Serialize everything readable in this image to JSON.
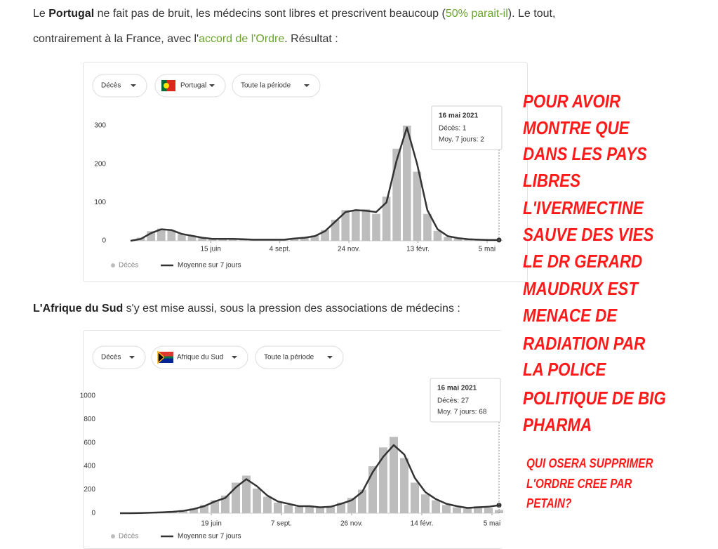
{
  "paragraphs": [
    [
      "Le ",
      "Portugal",
      " ne fait pas de bruit, les médecins sont libres et prescrivent beaucoup (",
      "50% parait-il",
      "). Le tout, contrairement à la France, avec l'",
      "accord de l'Ordre",
      ". Résultat :"
    ],
    [
      "L'Afrique du Sud",
      " s'y est mise aussi, sous la pression des associations de médecins :"
    ]
  ],
  "chart_data": [
    {
      "type": "bar",
      "controls": [
        "Décès",
        "Portugal",
        "Toute la période"
      ],
      "tooltip": {
        "title": "16 mai 2021",
        "lines": [
          "Décès: 1",
          "Moy. 7 jours: 2"
        ]
      },
      "xlim": [
        0,
        36
      ],
      "xticks": [
        {
          "value": 7.83,
          "label": "15 juin"
        },
        {
          "value": 14.58,
          "label": "4 sept."
        },
        {
          "value": 21.33,
          "label": "24 nov."
        },
        {
          "value": 28.08,
          "label": "13 févr."
        },
        {
          "value": 34.83,
          "label": "5 mai"
        }
      ],
      "ylim": [
        0,
        320
      ],
      "yticks": [
        0,
        100,
        200,
        300
      ],
      "grid": false,
      "series": [
        {
          "name": "Décès",
          "color": "#bdbdbd",
          "style": "bar",
          "values": [
            0,
            8,
            25,
            32,
            26,
            17,
            14,
            7,
            4,
            6,
            4,
            5,
            3,
            2,
            4,
            3,
            7,
            9,
            14,
            28,
            55,
            80,
            78,
            82,
            70,
            115,
            240,
            300,
            180,
            70,
            26,
            10,
            6,
            3,
            2,
            2,
            1
          ]
        },
        {
          "name": "Moyenne sur 7 jours",
          "color": "#333333",
          "style": "line",
          "values": [
            0,
            5,
            20,
            30,
            28,
            18,
            13,
            8,
            5,
            5,
            5,
            4,
            3,
            3,
            3,
            3,
            6,
            8,
            12,
            25,
            50,
            75,
            80,
            78,
            75,
            100,
            210,
            295,
            200,
            80,
            30,
            12,
            7,
            4,
            3,
            2,
            2
          ]
        }
      ]
    },
    {
      "type": "bar",
      "controls": [
        "Décès",
        "Afrique du Sud",
        "Toute la période"
      ],
      "tooltip": {
        "title": "16 mai 2021",
        "lines": [
          "Décès: 27",
          "Moy. 7 jours: 68"
        ]
      },
      "xlim": [
        0,
        36
      ],
      "xticks": [
        {
          "value": 8.67,
          "label": "19 juin"
        },
        {
          "value": 15.33,
          "label": "7 sept."
        },
        {
          "value": 22,
          "label": "26 nov."
        },
        {
          "value": 28.67,
          "label": "14 févr."
        },
        {
          "value": 35.33,
          "label": "5 mai"
        }
      ],
      "ylim": [
        0,
        1100
      ],
      "yticks": [
        0,
        200,
        400,
        600,
        800,
        1000
      ],
      "grid": false,
      "series": [
        {
          "name": "Décès",
          "color": "#bdbdbd",
          "style": "bar",
          "values": [
            0,
            0,
            3,
            6,
            10,
            14,
            25,
            40,
            70,
            110,
            150,
            260,
            320,
            210,
            140,
            90,
            70,
            55,
            65,
            45,
            60,
            90,
            130,
            200,
            400,
            560,
            650,
            470,
            260,
            160,
            110,
            70,
            50,
            40,
            60,
            45,
            27
          ]
        },
        {
          "name": "Moyenne sur 7 jours",
          "color": "#333333",
          "style": "line",
          "values": [
            0,
            0,
            2,
            5,
            8,
            12,
            20,
            35,
            60,
            100,
            130,
            220,
            290,
            230,
            150,
            100,
            80,
            60,
            60,
            50,
            55,
            80,
            110,
            180,
            350,
            480,
            580,
            500,
            300,
            180,
            120,
            80,
            60,
            45,
            50,
            55,
            68
          ]
        }
      ]
    }
  ],
  "annotation": {
    "lines": [
      "POUR AVOIR",
      "MONTRE QUE",
      "DANS LES PAYS",
      "LIBRES",
      "L'IVERMECTINE",
      "SAUVE DES VIES",
      "LE DR GERARD",
      "MAUDRUX EST",
      "MENACE DE",
      "RADIATION PAR",
      "LA POLICE",
      "POLITIQUE DE BIG",
      "PHARMA"
    ],
    "footer": [
      "QUI OSERA SUPPRIMER",
      "L'ORDRE CREE PAR",
      "PETAIN?"
    ]
  }
}
